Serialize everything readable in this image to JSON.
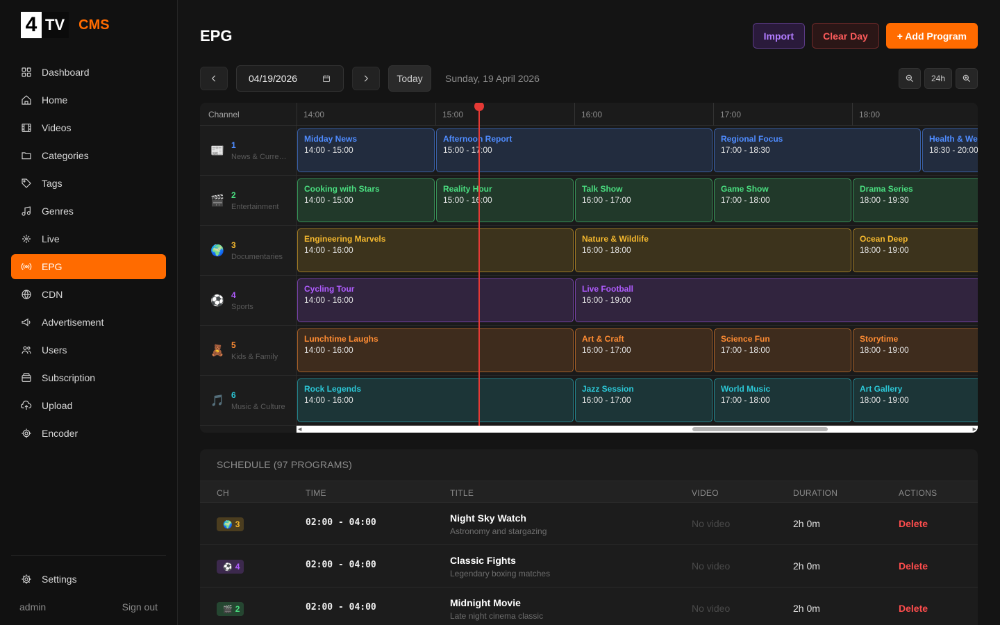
{
  "brand": {
    "logo_number": "4",
    "logo_tv": "TV",
    "logo_suffix": "CMS"
  },
  "sidebar": {
    "items": [
      {
        "label": "Dashboard",
        "icon": "dashboard-icon"
      },
      {
        "label": "Home",
        "icon": "home-icon"
      },
      {
        "label": "Videos",
        "icon": "film-icon"
      },
      {
        "label": "Categories",
        "icon": "folder-icon"
      },
      {
        "label": "Tags",
        "icon": "tag-icon"
      },
      {
        "label": "Genres",
        "icon": "music-note-icon"
      },
      {
        "label": "Live",
        "icon": "live-icon"
      },
      {
        "label": "EPG",
        "icon": "broadcast-icon",
        "active": true
      },
      {
        "label": "CDN",
        "icon": "globe-icon"
      },
      {
        "label": "Advertisement",
        "icon": "megaphone-icon"
      },
      {
        "label": "Users",
        "icon": "users-icon"
      },
      {
        "label": "Subscription",
        "icon": "wallet-icon"
      },
      {
        "label": "Upload",
        "icon": "upload-icon"
      },
      {
        "label": "Encoder",
        "icon": "gear-icon"
      }
    ],
    "settings_label": "Settings",
    "username": "admin",
    "signout_label": "Sign out"
  },
  "header": {
    "title": "EPG",
    "import_label": "Import",
    "clear_label": "Clear Day",
    "add_label": "+ Add Program"
  },
  "toolbar": {
    "date_value": "04/19/2026",
    "today_label": "Today",
    "date_long": "Sunday, 19 April 2026",
    "zoom_level": "24h"
  },
  "grid": {
    "channel_header": "Channel",
    "time_ticks": [
      "14:00",
      "15:00",
      "16:00",
      "17:00",
      "18:00"
    ],
    "channels": [
      {
        "number": "1",
        "name": "News & Current Affairs",
        "icon": "📰",
        "color": "#4f8cff",
        "programs": [
          {
            "title": "Midday News",
            "time": "14:00 - 15:00"
          },
          {
            "title": "Afternoon Report",
            "time": "15:00 - 17:00"
          },
          {
            "title": "Regional Focus",
            "time": "17:00 - 18:30"
          },
          {
            "title": "Health & Wellness",
            "time": "18:30 - 20:00"
          }
        ]
      },
      {
        "number": "2",
        "name": "Entertainment",
        "icon": "🎬",
        "color": "#4ade80",
        "programs": [
          {
            "title": "Cooking with Stars",
            "time": "14:00 - 15:00"
          },
          {
            "title": "Reality Hour",
            "time": "15:00 - 16:00"
          },
          {
            "title": "Talk Show",
            "time": "16:00 - 17:00"
          },
          {
            "title": "Game Show",
            "time": "17:00 - 18:00"
          },
          {
            "title": "Drama Series",
            "time": "18:00 - 19:30"
          }
        ]
      },
      {
        "number": "3",
        "name": "Documentaries",
        "icon": "🌍",
        "color": "#f5b82e",
        "programs": [
          {
            "title": "Engineering Marvels",
            "time": "14:00 - 16:00"
          },
          {
            "title": "Nature & Wildlife",
            "time": "16:00 - 18:00"
          },
          {
            "title": "Ocean Deep",
            "time": "18:00 - 19:00"
          }
        ]
      },
      {
        "number": "4",
        "name": "Sports",
        "icon": "⚽",
        "color": "#b05cff",
        "programs": [
          {
            "title": "Cycling Tour",
            "time": "14:00 - 16:00"
          },
          {
            "title": "Live Football",
            "time": "16:00 - 19:00"
          }
        ]
      },
      {
        "number": "5",
        "name": "Kids & Family",
        "icon": "🧸",
        "color": "#ff8c33",
        "programs": [
          {
            "title": "Lunchtime Laughs",
            "time": "14:00 - 16:00"
          },
          {
            "title": "Art & Craft",
            "time": "16:00 - 17:00"
          },
          {
            "title": "Science Fun",
            "time": "17:00 - 18:00"
          },
          {
            "title": "Storytime",
            "time": "18:00 - 19:00"
          }
        ]
      },
      {
        "number": "6",
        "name": "Music & Culture",
        "icon": "🎵",
        "color": "#2cc7d6",
        "programs": [
          {
            "title": "Rock Legends",
            "time": "14:00 - 16:00"
          },
          {
            "title": "Jazz Session",
            "time": "16:00 - 17:00"
          },
          {
            "title": "World Music",
            "time": "17:00 - 18:00"
          },
          {
            "title": "Art Gallery",
            "time": "18:00 - 19:00"
          }
        ]
      }
    ]
  },
  "schedule": {
    "title": "SCHEDULE (97 PROGRAMS)",
    "columns": [
      "CH",
      "TIME",
      "TITLE",
      "VIDEO",
      "DURATION",
      "ACTIONS"
    ],
    "rows": [
      {
        "ch": "3",
        "ch_icon": "🌍",
        "ch_color": "#f5b82e",
        "time": "02:00 - 04:00",
        "title": "Night Sky Watch",
        "desc": "Astronomy and stargazing",
        "video": "No video",
        "duration": "2h 0m",
        "action": "Delete"
      },
      {
        "ch": "4",
        "ch_icon": "⚽",
        "ch_color": "#b05cff",
        "time": "02:00 - 04:00",
        "title": "Classic Fights",
        "desc": "Legendary boxing matches",
        "video": "No video",
        "duration": "2h 0m",
        "action": "Delete"
      },
      {
        "ch": "2",
        "ch_icon": "🎬",
        "ch_color": "#4ade80",
        "time": "02:00 - 04:00",
        "title": "Midnight Movie",
        "desc": "Late night cinema classic",
        "video": "No video",
        "duration": "2h 0m",
        "action": "Delete"
      }
    ]
  }
}
